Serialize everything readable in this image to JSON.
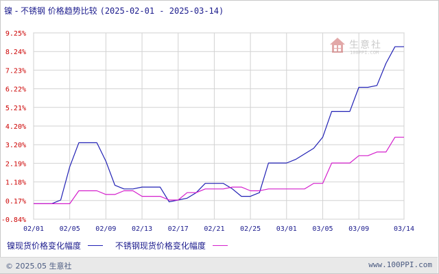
{
  "title": {
    "main": "镍 - 不锈钢 价格趋势比较",
    "dates": "(2025-02-01 - 2025-03-14)"
  },
  "legend": [
    {
      "label": "镍现货价格变化幅度",
      "color": "#1f1fb4"
    },
    {
      "label": "不锈钢现货价格变化幅度",
      "color": "#d41ecc"
    }
  ],
  "footer": {
    "copyright": "© 2025.05 生意社",
    "site": "www.100PPI.com"
  },
  "watermark": {
    "name": "生意社",
    "url": "100PPI.COM"
  },
  "chart_data": {
    "type": "line",
    "x": [
      "02/01",
      "02/02",
      "02/03",
      "02/04",
      "02/05",
      "02/06",
      "02/07",
      "02/08",
      "02/09",
      "02/10",
      "02/11",
      "02/12",
      "02/13",
      "02/14",
      "02/15",
      "02/16",
      "02/17",
      "02/18",
      "02/19",
      "02/20",
      "02/21",
      "02/22",
      "02/23",
      "02/24",
      "02/25",
      "02/26",
      "02/27",
      "02/28",
      "03/01",
      "03/02",
      "03/03",
      "03/04",
      "03/05",
      "03/06",
      "03/07",
      "03/08",
      "03/09",
      "03/10",
      "03/11",
      "03/12",
      "03/13",
      "03/14"
    ],
    "x_ticks": [
      "02/01",
      "02/05",
      "02/09",
      "02/13",
      "02/17",
      "02/21",
      "02/25",
      "03/01",
      "03/05",
      "03/09",
      "03/14"
    ],
    "y_ticks": [
      "9.25%",
      "8.24%",
      "7.23%",
      "6.22%",
      "5.21%",
      "4.20%",
      "3.20%",
      "2.19%",
      "1.18%",
      "0.17%",
      "-0.84%"
    ],
    "ylim": [
      -0.84,
      9.25
    ],
    "grid": true,
    "legend_position": "bottom",
    "series": [
      {
        "name": "镍现货价格变化幅度",
        "color": "#1f1fb4",
        "values": [
          0,
          0,
          0,
          0.2,
          2.0,
          3.3,
          3.3,
          3.3,
          2.3,
          1.0,
          0.8,
          0.8,
          0.9,
          0.9,
          0.9,
          0.1,
          0.2,
          0.3,
          0.6,
          1.1,
          1.1,
          1.1,
          0.8,
          0.4,
          0.4,
          0.6,
          2.2,
          2.2,
          2.2,
          2.4,
          2.7,
          3.0,
          3.6,
          5.0,
          5.0,
          5.0,
          6.3,
          6.3,
          6.4,
          7.6,
          8.5,
          8.5
        ]
      },
      {
        "name": "不锈钢现货价格变化幅度",
        "color": "#d41ecc",
        "values": [
          0,
          0,
          0,
          0,
          0,
          0.7,
          0.7,
          0.7,
          0.5,
          0.5,
          0.7,
          0.7,
          0.4,
          0.4,
          0.4,
          0.2,
          0.2,
          0.6,
          0.6,
          0.8,
          0.8,
          0.8,
          0.9,
          0.9,
          0.7,
          0.7,
          0.8,
          0.8,
          0.8,
          0.8,
          0.8,
          1.1,
          1.1,
          2.2,
          2.2,
          2.2,
          2.6,
          2.6,
          2.8,
          2.8,
          3.6,
          3.6
        ]
      }
    ]
  }
}
